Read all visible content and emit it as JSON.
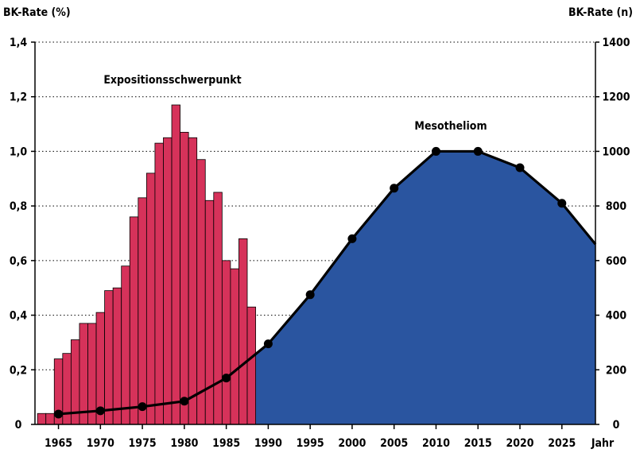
{
  "chart_data": {
    "type": "bar+area+line",
    "y_left_label": "BK-Rate (%)",
    "y_right_label": "BK-Rate (n)",
    "x_unit_label": "Jahr",
    "y_left_ticks": [
      "0",
      "0,2",
      "0,4",
      "0,6",
      "0,8",
      "1,0",
      "1,2",
      "1,4"
    ],
    "y_right_ticks": [
      "0",
      "200",
      "400",
      "600",
      "800",
      "1000",
      "1200",
      "1400"
    ],
    "y_left_range": [
      0,
      1.4
    ],
    "y_right_range": [
      0,
      1400
    ],
    "x_ticks": [
      "1965",
      "1970",
      "1975",
      "1980",
      "1985",
      "1990",
      "1995",
      "2000",
      "2005",
      "2010",
      "2015",
      "2020",
      "2025"
    ],
    "grid": "horizontal dotted at 0,2 steps",
    "annotations": {
      "bars": "Expositionsschwerpunkt",
      "area": "Mesotheliom"
    },
    "colors": {
      "bars": "#d6325a",
      "area": "#2a55a0",
      "line": "#000000"
    },
    "exposure_bars": {
      "name": "Expositionsschwerpunkt",
      "years": [
        1963,
        1964,
        1965,
        1966,
        1967,
        1968,
        1969,
        1970,
        1971,
        1972,
        1973,
        1974,
        1975,
        1976,
        1977,
        1978,
        1979,
        1980,
        1981,
        1982,
        1983,
        1984,
        1985,
        1986,
        1987,
        1988
      ],
      "values": [
        0.04,
        0.04,
        0.24,
        0.26,
        0.31,
        0.37,
        0.37,
        0.41,
        0.49,
        0.5,
        0.58,
        0.76,
        0.83,
        0.92,
        1.03,
        1.05,
        1.17,
        1.07,
        1.05,
        0.97,
        0.82,
        0.85,
        0.6,
        0.57,
        0.68,
        0.43
      ]
    },
    "mesotheliom": {
      "name": "Mesotheliom",
      "points": [
        {
          "x": 1965,
          "y": 38
        },
        {
          "x": 1970,
          "y": 50
        },
        {
          "x": 1975,
          "y": 65
        },
        {
          "x": 1980,
          "y": 85
        },
        {
          "x": 1985,
          "y": 170
        },
        {
          "x": 1990,
          "y": 295
        },
        {
          "x": 1995,
          "y": 475
        },
        {
          "x": 2000,
          "y": 680
        },
        {
          "x": 2005,
          "y": 865
        },
        {
          "x": 2010,
          "y": 1000
        },
        {
          "x": 2015,
          "y": 1000
        },
        {
          "x": 2020,
          "y": 940
        },
        {
          "x": 2025,
          "y": 810
        },
        {
          "x": 2029,
          "y": 660
        }
      ],
      "marker_count": 13
    }
  }
}
